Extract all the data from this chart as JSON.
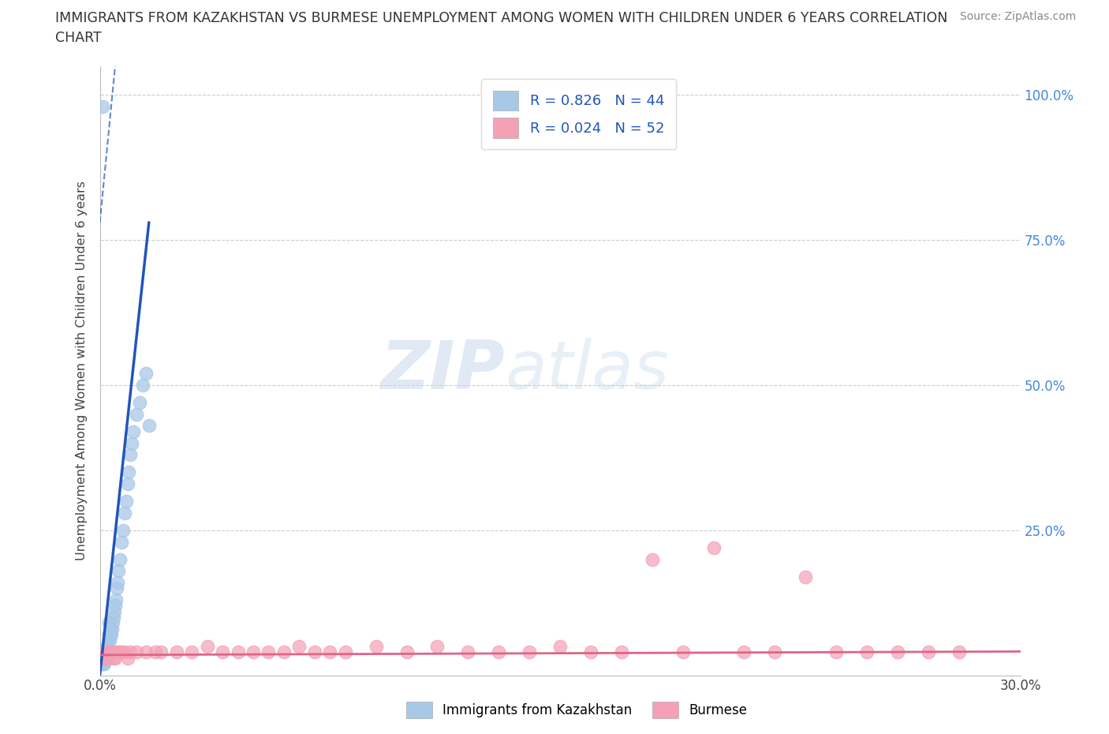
{
  "title_line1": "IMMIGRANTS FROM KAZAKHSTAN VS BURMESE UNEMPLOYMENT AMONG WOMEN WITH CHILDREN UNDER 6 YEARS CORRELATION",
  "title_line2": "CHART",
  "source": "Source: ZipAtlas.com",
  "ylabel": "Unemployment Among Women with Children Under 6 years",
  "x_left_label": "0.0%",
  "x_right_label": "30.0%",
  "ylabel_ticks_right": [
    "100.0%",
    "75.0%",
    "50.0%",
    "25.0%"
  ],
  "ylabel_vals": [
    100,
    75,
    50,
    25
  ],
  "xlim": [
    0,
    30
  ],
  "ylim": [
    0,
    105
  ],
  "legend1_label": "R = 0.826   N = 44",
  "legend2_label": "R = 0.024   N = 52",
  "legend_bottom_label1": "Immigrants from Kazakhstan",
  "legend_bottom_label2": "Burmese",
  "watermark_zip": "ZIP",
  "watermark_atlas": "atlas",
  "blue_color": "#a8c8e8",
  "pink_color": "#f4a0b5",
  "blue_line_color": "#2255bb",
  "pink_line_color": "#dd6688",
  "blue_scatter_x": [
    0.08,
    0.1,
    0.12,
    0.15,
    0.18,
    0.2,
    0.22,
    0.25,
    0.28,
    0.3,
    0.33,
    0.35,
    0.38,
    0.4,
    0.42,
    0.45,
    0.48,
    0.5,
    0.52,
    0.55,
    0.58,
    0.6,
    0.65,
    0.7,
    0.75,
    0.8,
    0.85,
    0.9,
    0.95,
    1.0,
    1.05,
    1.1,
    1.2,
    1.3,
    1.4,
    1.5,
    0.1,
    0.15,
    0.2,
    0.25,
    0.3,
    0.35,
    0.3,
    1.6
  ],
  "blue_scatter_y": [
    2,
    3,
    2,
    3,
    4,
    3,
    3,
    5,
    5,
    6,
    6,
    7,
    7,
    8,
    9,
    10,
    11,
    12,
    13,
    15,
    16,
    18,
    20,
    23,
    25,
    28,
    30,
    33,
    35,
    38,
    40,
    42,
    45,
    47,
    50,
    52,
    98,
    2,
    4,
    5,
    7,
    8,
    9,
    43
  ],
  "pink_scatter_x": [
    0.05,
    0.1,
    0.15,
    0.2,
    0.3,
    0.4,
    0.5,
    0.6,
    0.8,
    1.0,
    1.5,
    2.0,
    2.5,
    3.0,
    3.5,
    4.0,
    4.5,
    5.0,
    5.5,
    6.0,
    6.5,
    7.0,
    7.5,
    8.0,
    9.0,
    10.0,
    11.0,
    12.0,
    13.0,
    14.0,
    15.0,
    16.0,
    17.0,
    18.0,
    19.0,
    20.0,
    21.0,
    22.0,
    23.0,
    24.0,
    25.0,
    26.0,
    27.0,
    28.0,
    0.25,
    0.35,
    0.45,
    0.55,
    0.7,
    0.9,
    1.2,
    1.8
  ],
  "pink_scatter_y": [
    3,
    3,
    3,
    4,
    4,
    4,
    3,
    4,
    4,
    4,
    4,
    4,
    4,
    4,
    5,
    4,
    4,
    4,
    4,
    4,
    5,
    4,
    4,
    4,
    5,
    4,
    5,
    4,
    4,
    4,
    5,
    4,
    4,
    20,
    4,
    22,
    4,
    4,
    17,
    4,
    4,
    4,
    4,
    4,
    3,
    4,
    3,
    4,
    4,
    3,
    4,
    4
  ],
  "blue_trend_x1": 0.0,
  "blue_trend_y1": 0.0,
  "blue_trend_x2": 1.6,
  "blue_trend_y2": 78,
  "blue_dash_x1": 0.0,
  "blue_dash_y1": 78,
  "blue_dash_x2": 0.5,
  "blue_dash_y2": 105,
  "pink_trend_slope": 0.02,
  "pink_trend_intercept": 3.5
}
